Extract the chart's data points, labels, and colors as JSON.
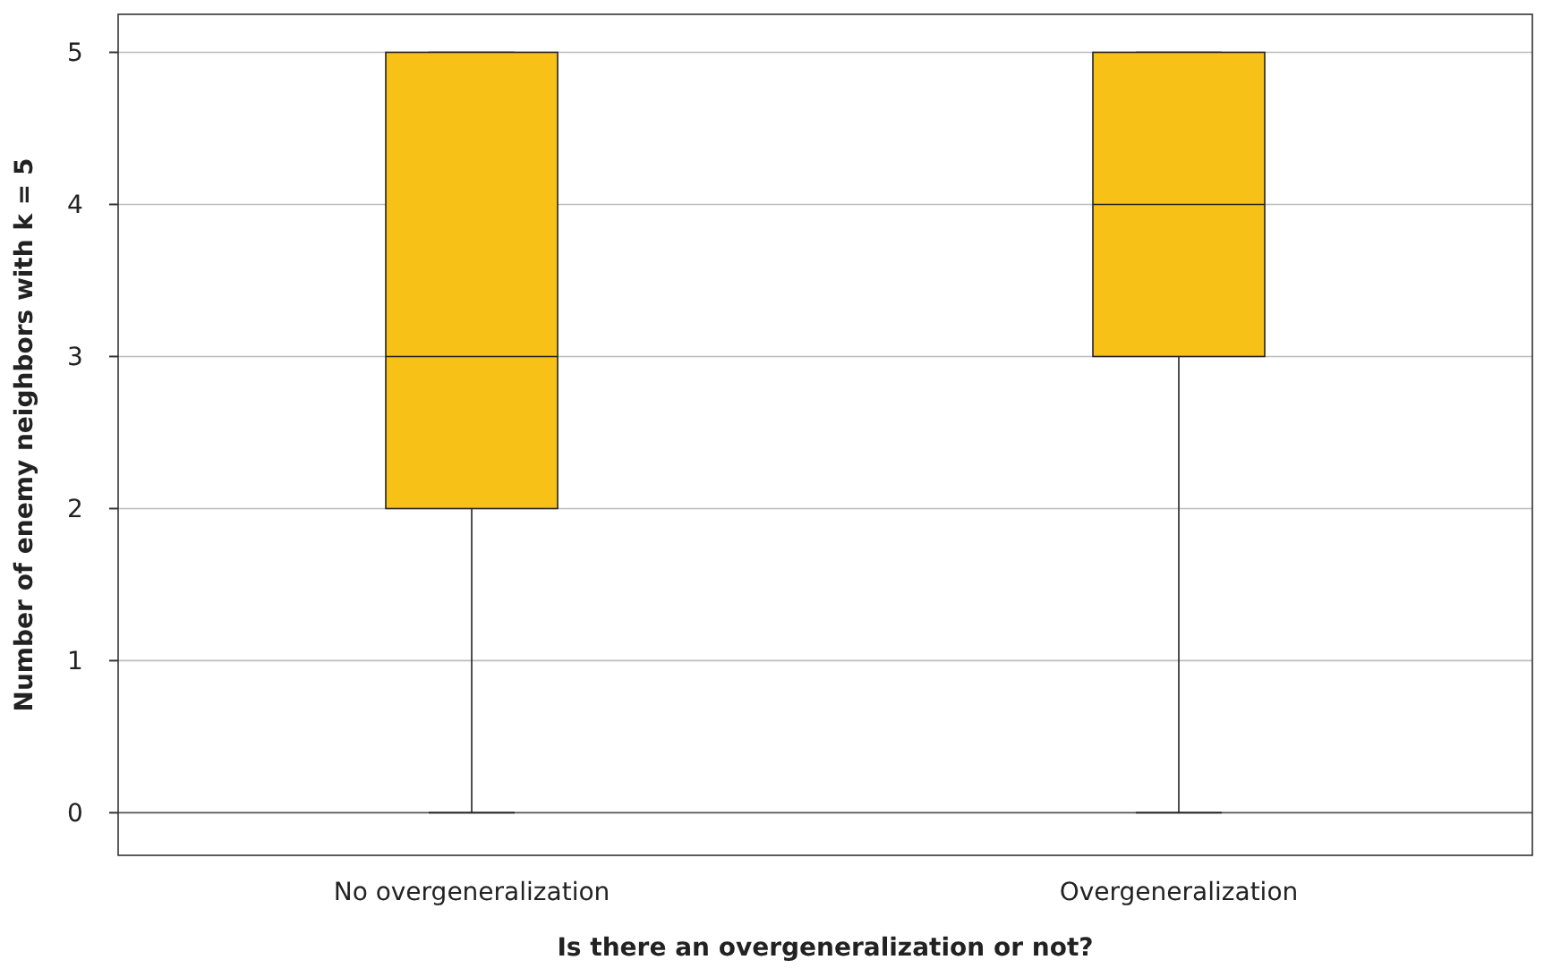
{
  "chart_data": {
    "type": "box",
    "xlabel": "Is there an overgeneralization or not?",
    "ylabel": "Number of enemy neighbors with k = 5",
    "categories": [
      "No overgeneralization",
      "Overgeneralization"
    ],
    "boxes": [
      {
        "low": 0,
        "q1": 2,
        "median": 3,
        "q3": 5,
        "high": 5
      },
      {
        "low": 0,
        "q1": 3,
        "median": 4,
        "q3": 5,
        "high": 5
      }
    ],
    "color": "#f8c118",
    "ylim": [
      -0.28,
      5.25
    ],
    "yticks": [
      0,
      1,
      2,
      3,
      4,
      5
    ],
    "grid": "y"
  }
}
